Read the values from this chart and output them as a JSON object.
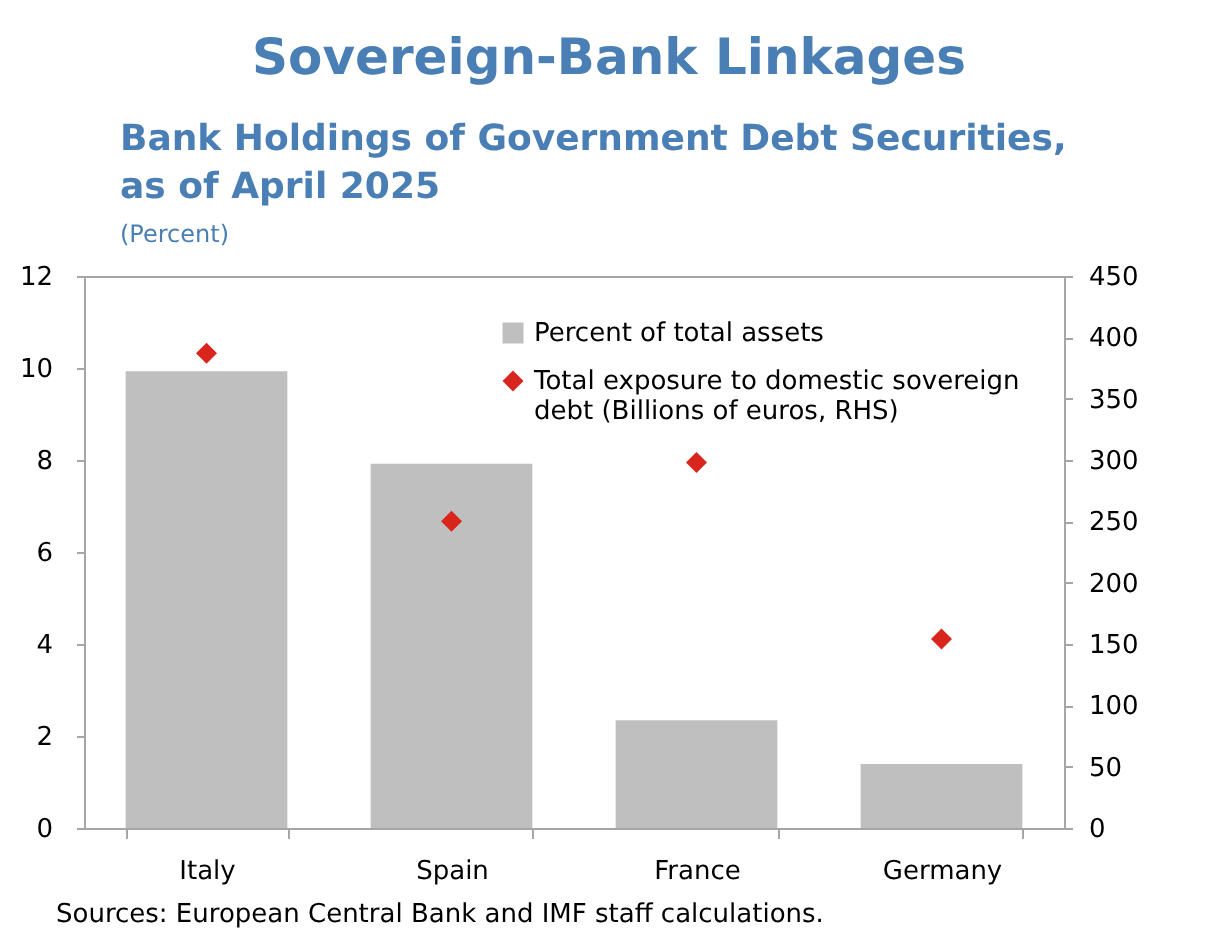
{
  "chart_data": {
    "type": "bar",
    "title": "Sovereign-Bank Linkages",
    "subtitle": "Bank Holdings of Government Debt Securities, as of April 2025",
    "ylabel": "(Percent)",
    "categories": [
      "Italy",
      "Spain",
      "France",
      "Germany"
    ],
    "series": [
      {
        "name": "Percent of total assets",
        "color": "#bfbfbf",
        "values": [
          9.93,
          7.92,
          2.34,
          1.39
        ]
      },
      {
        "name": "Total exposure to domestic sovereign debt (Billions of euros, RHS)",
        "type": "scatter",
        "axis": "y2",
        "marker": "diamond",
        "color": "#d9261c",
        "values": [
          387,
          250,
          298,
          154
        ]
      }
    ],
    "ylim": [
      0,
      12
    ],
    "yticks": [
      0,
      2,
      4,
      6,
      8,
      10,
      12
    ],
    "y2lim": [
      0,
      450
    ],
    "y2ticks": [
      0,
      50,
      100,
      150,
      200,
      250,
      300,
      350,
      400,
      450
    ],
    "grid": false,
    "legend": "top right",
    "annotations": [
      "Sources: European Central Bank and IMF staff calculations."
    ]
  }
}
